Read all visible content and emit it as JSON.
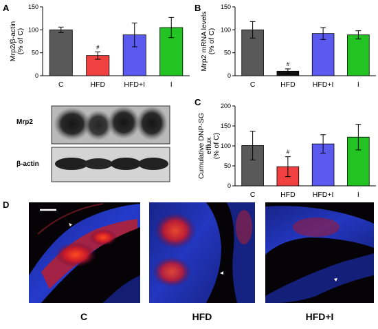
{
  "panels": {
    "A": "A",
    "B": "B",
    "C": "C",
    "D": "D"
  },
  "colors": {
    "C": "#595959",
    "HFD": "#f04040",
    "HFD+I": "#5a5aee",
    "I": "#22c322",
    "HFD_B": "#111111"
  },
  "chart_data": [
    {
      "id": "A",
      "type": "bar",
      "categories": [
        "C",
        "HFD",
        "HFD+I",
        "I"
      ],
      "values": [
        100,
        44,
        89,
        105
      ],
      "errors": [
        6,
        8,
        26,
        22
      ],
      "ylabel": "Mrp2/β-actin (% of C)",
      "ylim": [
        0,
        150
      ],
      "yticks": [
        0,
        50,
        100,
        150
      ],
      "annotations": [
        {
          "category": "HFD",
          "text": "#"
        }
      ]
    },
    {
      "id": "B",
      "type": "bar",
      "categories": [
        "C",
        "HFD",
        "HFD+I",
        "I"
      ],
      "values": [
        100,
        10,
        92,
        89
      ],
      "errors": [
        18,
        5,
        13,
        9
      ],
      "ylabel": "Mrp2 mRNA levels (% of C)",
      "ylim": [
        0,
        150
      ],
      "yticks": [
        0,
        50,
        100,
        150
      ],
      "annotations": [
        {
          "category": "HFD",
          "text": "#"
        }
      ]
    },
    {
      "id": "C",
      "type": "bar",
      "categories": [
        "C",
        "HFD",
        "HFD+I",
        "I"
      ],
      "values": [
        101,
        48,
        105,
        122
      ],
      "errors": [
        36,
        25,
        23,
        32
      ],
      "ylabel": "Cumulative DNP-SG efflux (% of C)",
      "ylim": [
        0,
        200
      ],
      "yticks": [
        0,
        50,
        100,
        150,
        200
      ],
      "annotations": [
        {
          "category": "HFD",
          "text": "#"
        }
      ]
    }
  ],
  "blot": {
    "band1_label": "Mrp2",
    "band2_label": "β-actin"
  },
  "micrographs": [
    {
      "label": "C"
    },
    {
      "label": "HFD"
    },
    {
      "label": "HFD+I"
    }
  ]
}
